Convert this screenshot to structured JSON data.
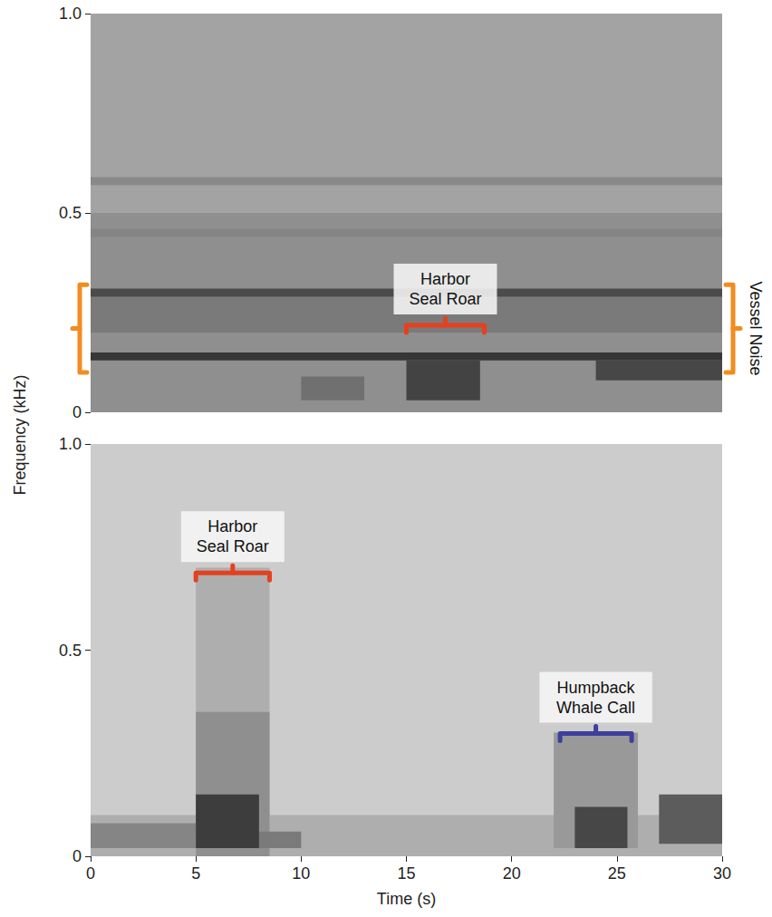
{
  "chart_data": [
    {
      "type": "spectrogram",
      "ylabel": "Frequency (kHz)",
      "xlim": [
        0,
        30
      ],
      "xticks": [
        0,
        5,
        10,
        15,
        20,
        25,
        30
      ],
      "ylim": [
        0,
        1
      ],
      "yticks": [
        0,
        0.5,
        {
          "value": 1,
          "label": "1.0"
        }
      ],
      "tick_labels": "y",
      "grid": false,
      "background": 0.35,
      "patches": [
        [
          0,
          30,
          0.0,
          0.5,
          0.45
        ],
        [
          0,
          30,
          0.2,
          0.29,
          0.55
        ],
        [
          0,
          30,
          0.44,
          0.46,
          0.5
        ],
        [
          0,
          30,
          0.57,
          0.59,
          0.48
        ],
        [
          0,
          30,
          0.29,
          0.31,
          0.78
        ],
        [
          0,
          30,
          0.13,
          0.15,
          0.88
        ],
        [
          10,
          13,
          0.03,
          0.09,
          0.6
        ],
        [
          15,
          18.5,
          0.03,
          0.13,
          0.82
        ],
        [
          24,
          30,
          0.08,
          0.13,
          0.8
        ]
      ],
      "annotations": [
        {
          "text": "Harbor Seal Roar",
          "x": [
            15,
            18.7
          ],
          "y": 0.2,
          "color": "#e5401f"
        },
        {
          "text": "Vessel Noise",
          "y": [
            0.1,
            0.32
          ],
          "color": "#f28c1e"
        }
      ]
    },
    {
      "type": "spectrogram",
      "xlabel": "Time (s)",
      "xlim": [
        0,
        30
      ],
      "xticks": [
        0,
        5,
        10,
        15,
        20,
        25,
        30
      ],
      "ylim": [
        0,
        1
      ],
      "yticks": [
        0,
        0.5,
        {
          "value": 1,
          "label": "1.0"
        }
      ],
      "grid": false,
      "background": 0.15,
      "patches": [
        [
          0,
          30,
          0.0,
          0.1,
          0.3
        ],
        [
          0,
          5,
          0.02,
          0.08,
          0.5
        ],
        [
          5,
          8.5,
          0.0,
          0.7,
          0.3
        ],
        [
          5,
          8.5,
          0.0,
          0.35,
          0.45
        ],
        [
          8,
          10,
          0.02,
          0.06,
          0.55
        ],
        [
          5,
          8,
          0.02,
          0.15,
          0.85
        ],
        [
          22,
          26,
          0.02,
          0.3,
          0.4
        ],
        [
          23,
          25.5,
          0.02,
          0.12,
          0.8
        ],
        [
          27,
          30,
          0.03,
          0.15,
          0.7
        ]
      ],
      "annotations": [
        {
          "text": "Harbor Seal Roar",
          "x": [
            5,
            8.5
          ],
          "y": 0.67,
          "color": "#e5401f"
        },
        {
          "text": "Humpback Whale Call",
          "x": [
            22.3,
            25.7
          ],
          "y": 0.28,
          "color": "#3c3f9c"
        }
      ]
    }
  ]
}
